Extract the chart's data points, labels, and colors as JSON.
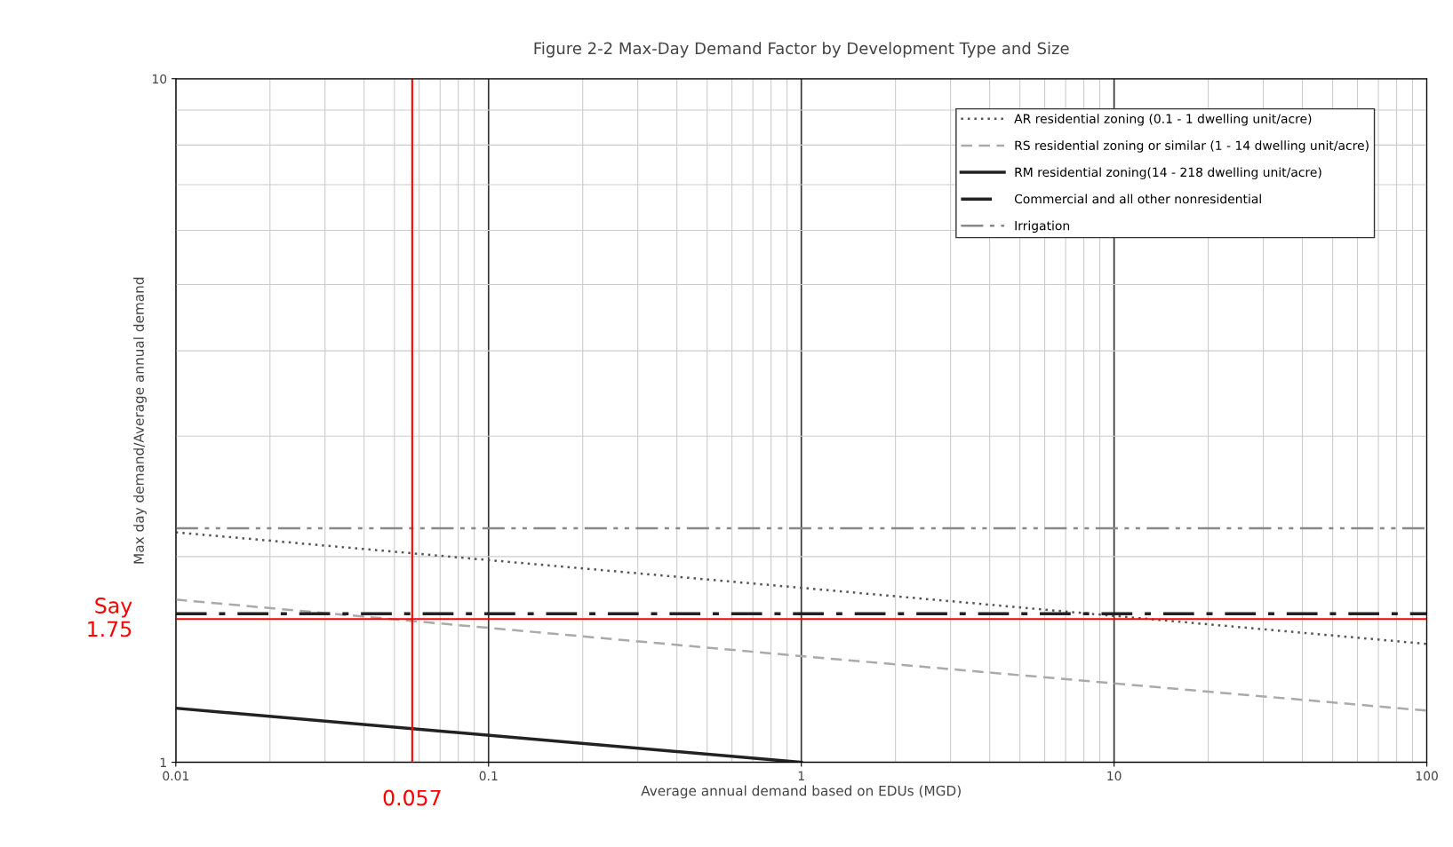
{
  "chart_data": {
    "type": "line",
    "title": "Figure 2-2 Max-Day Demand Factor by Development Type and Size",
    "xlabel": "Average annual demand based on EDUs (MGD)",
    "ylabel": "Max day demand/Average annual demand",
    "log": "xy",
    "xlim": [
      0.01,
      100
    ],
    "ylim": [
      1,
      10
    ],
    "xticks": [
      0.01,
      0.1,
      1,
      10,
      100
    ],
    "yticks": [
      1,
      10
    ],
    "grid": true,
    "legend": "top right",
    "marker": "none",
    "series": [
      {
        "name": "AR residential zoning (0.1 - 1 dwelling unit/acre)",
        "color": "#555555",
        "line_style": "dotted",
        "x": [
          0.01,
          1,
          100
        ],
        "values": [
          2.17,
          1.8,
          1.49
        ]
      },
      {
        "name": "RS residential zoning or similar (1 - 14 dwelling unit/acre)",
        "color": "#aaaaaa",
        "line_style": "dashed",
        "x": [
          0.01,
          1,
          100
        ],
        "values": [
          1.73,
          1.43,
          1.19
        ]
      },
      {
        "name": "RM residential zoning(14 - 218 dwelling unit/acre)",
        "color": "#222222",
        "line_style": "solid",
        "x": [
          0.01,
          1
        ],
        "values": [
          1.2,
          1.0
        ]
      },
      {
        "name": "Commercial and all other nonresidential",
        "color": "#222222",
        "line_style": "dashdot",
        "x": [
          0.01,
          100
        ],
        "values": [
          1.65,
          1.65
        ]
      },
      {
        "name": "Irrigation",
        "color": "#888888",
        "line_style": "dashdotdot",
        "x": [
          0.01,
          100
        ],
        "values": [
          2.2,
          2.2
        ]
      }
    ],
    "ref_lines": [
      {
        "axis": "x",
        "value": 0.057,
        "label": "0.057",
        "color": "#ff0000"
      },
      {
        "axis": "y",
        "value": 1.62,
        "label": "Say\n1.75",
        "color": "#ff0000"
      }
    ]
  }
}
